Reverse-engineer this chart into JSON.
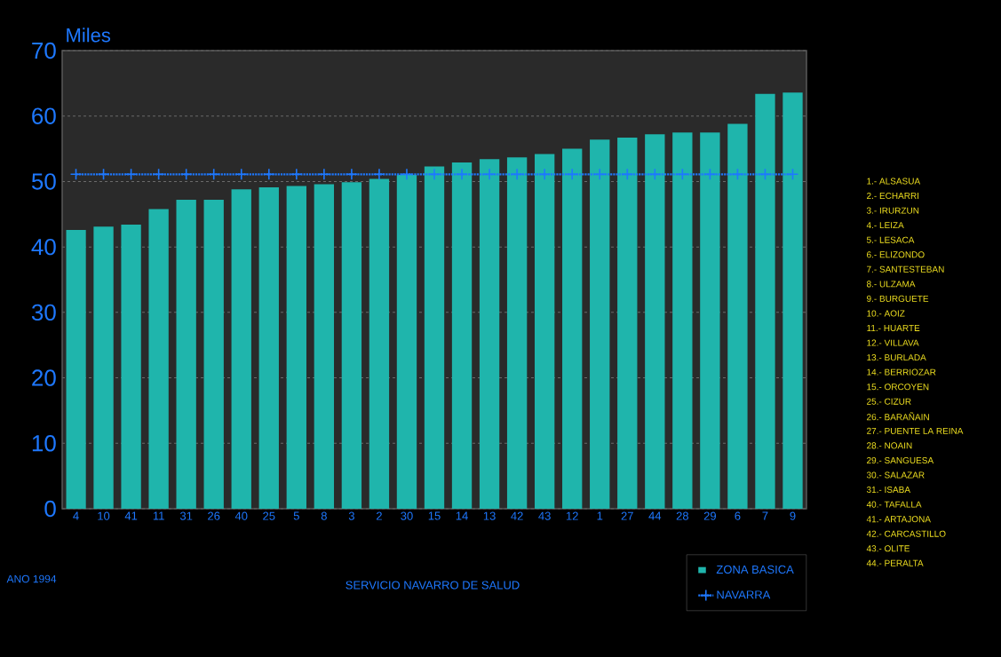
{
  "chart_data": {
    "type": "bar",
    "ylabel": "Miles",
    "categories": [
      "4",
      "10",
      "41",
      "11",
      "31",
      "26",
      "40",
      "25",
      "5",
      "8",
      "3",
      "2",
      "30",
      "15",
      "14",
      "13",
      "42",
      "43",
      "12",
      "1",
      "27",
      "44",
      "28",
      "29",
      "6",
      "7",
      "9"
    ],
    "series": [
      {
        "name": "ZONA BASICA",
        "color": "#1fb5ac",
        "values": [
          42.6,
          43.1,
          43.4,
          45.8,
          47.2,
          47.2,
          48.8,
          49.1,
          49.3,
          49.6,
          49.9,
          50.4,
          51.0,
          52.3,
          52.9,
          53.4,
          53.7,
          54.2,
          55.0,
          56.4,
          56.7,
          57.2,
          57.5,
          57.5,
          58.8,
          63.4,
          63.6
        ]
      },
      {
        "name": "NAVARRA",
        "type": "line",
        "color": "#1e78ff",
        "marker": "cross",
        "line_style": "dotted",
        "values": [
          51.1,
          51.1,
          51.1,
          51.1,
          51.1,
          51.1,
          51.1,
          51.1,
          51.1,
          51.1,
          51.1,
          51.1,
          51.1,
          51.1,
          51.1,
          51.1,
          51.1,
          51.1,
          51.1,
          51.1,
          51.1,
          51.1,
          51.1,
          51.1,
          51.1,
          51.1,
          51.1
        ]
      }
    ],
    "ylim": [
      0,
      70
    ],
    "yticks": [
      0,
      10,
      20,
      30,
      40,
      50,
      60,
      70
    ],
    "grid": "y",
    "legend": "bottom right",
    "annotations": [
      "ANO  1994",
      "SERVICIO NAVARRO DE SALUD",
      "1.- ALSASUA",
      "2.- ECHARRI",
      "3.- IRURZUN",
      "4.- LEIZA",
      "5.- LESACA",
      "6.- ELIZONDO",
      "7.- SANTESTEBAN",
      "8.- ULZAMA",
      "9.- BURGUETE",
      "10.- AOIZ",
      "11.- HUARTE",
      "12.- VILLAVA",
      "13.- BURLADA",
      "14.- BERRIOZAR",
      "15.- ORCOYEN",
      "25.- CIZUR",
      "26.- BARAÑAIN",
      "27.- PUENTE LA REINA",
      "28.- NOAIN",
      "29.- SANGUESA",
      "30.- SALAZAR",
      "31.- ISABA",
      "40.- TAFALLA",
      "41.- ARTAJONA",
      "42.- CARCASTILLO",
      "43.- OLITE",
      "44.- PERALTA"
    ]
  }
}
